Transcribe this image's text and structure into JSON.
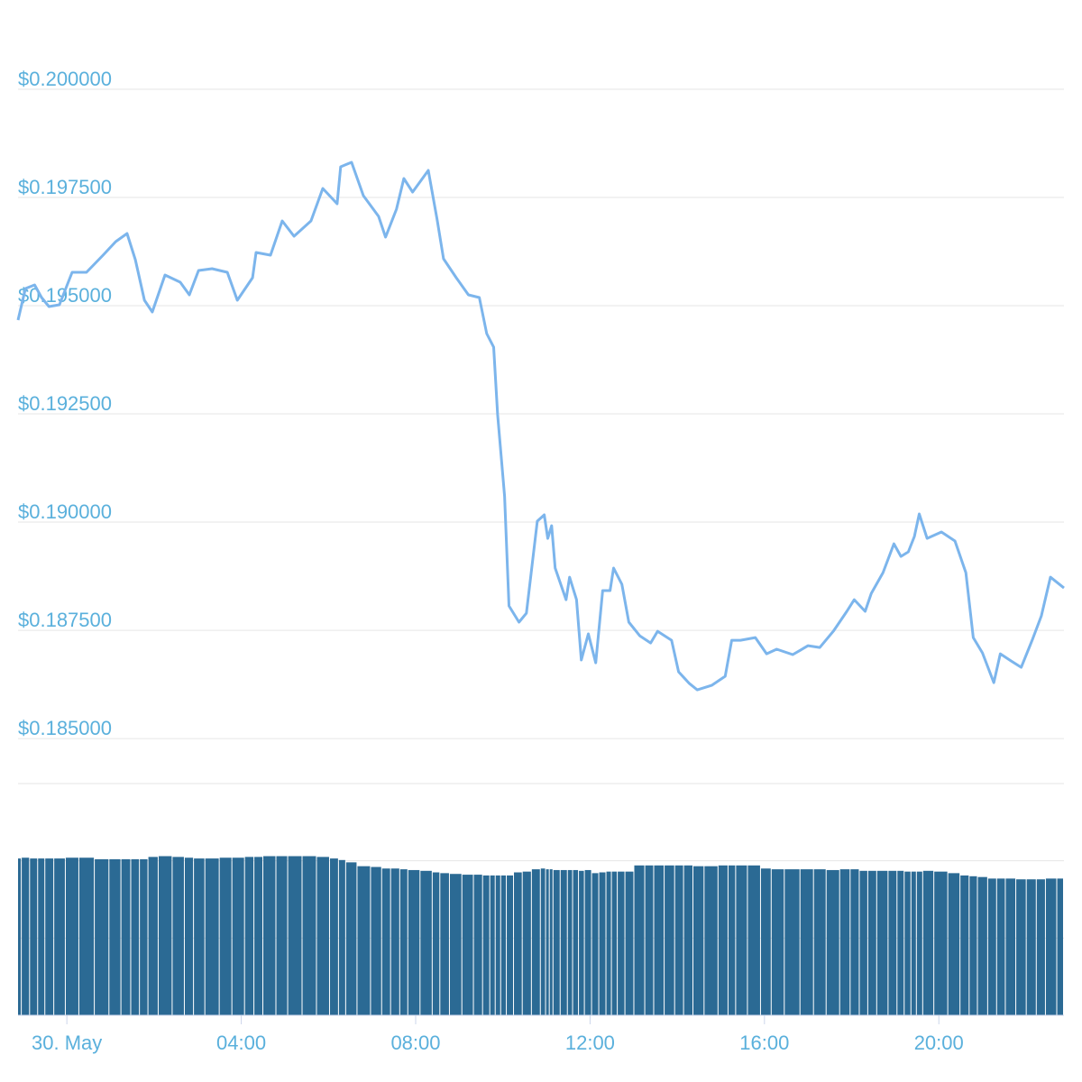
{
  "chart_data": {
    "type": "line",
    "x": [
      -1.12,
      -0.95,
      -0.74,
      -0.58,
      -0.41,
      -0.17,
      0.12,
      0.45,
      0.83,
      1.12,
      1.38,
      1.57,
      1.78,
      1.96,
      2.25,
      2.6,
      2.81,
      3.02,
      3.33,
      3.68,
      3.91,
      4.26,
      4.34,
      4.67,
      4.94,
      5.21,
      5.6,
      5.87,
      6.2,
      6.28,
      6.53,
      6.8,
      7.15,
      7.31,
      7.56,
      7.73,
      7.93,
      8.29,
      8.49,
      8.64,
      8.93,
      9.21,
      9.46,
      9.63,
      9.79,
      9.88,
      10.04,
      10.14,
      10.37,
      10.54,
      10.79,
      10.95,
      11.03,
      11.12,
      11.2,
      11.45,
      11.53,
      11.69,
      11.8,
      11.96,
      12.13,
      12.29,
      12.46,
      12.54,
      12.73,
      12.89,
      13.14,
      13.39,
      13.55,
      13.87,
      14.03,
      14.28,
      14.46,
      14.79,
      15.1,
      15.25,
      15.45,
      15.79,
      16.05,
      16.28,
      16.65,
      17.0,
      17.27,
      17.58,
      17.89,
      18.06,
      18.31,
      18.45,
      18.72,
      18.97,
      19.13,
      19.3,
      19.44,
      19.55,
      19.73,
      20.06,
      20.37,
      20.62,
      20.79,
      21.0,
      21.26,
      21.41,
      21.66,
      21.89,
      22.14,
      22.35,
      22.56,
      22.87
    ],
    "series": [
      {
        "color": "#7cb5ec",
        "values": [
          0.194667,
          0.195396,
          0.195479,
          0.195188,
          0.194979,
          0.195021,
          0.195771,
          0.195771,
          0.196167,
          0.196479,
          0.196667,
          0.196063,
          0.195125,
          0.194854,
          0.195708,
          0.195542,
          0.19525,
          0.195813,
          0.195854,
          0.195771,
          0.195125,
          0.195646,
          0.196229,
          0.196167,
          0.196958,
          0.196604,
          0.196958,
          0.197708,
          0.197354,
          0.198208,
          0.198313,
          0.197542,
          0.197063,
          0.196583,
          0.197229,
          0.197938,
          0.197625,
          0.198125,
          0.197,
          0.196083,
          0.195646,
          0.19525,
          0.195188,
          0.194354,
          0.194042,
          0.192479,
          0.190604,
          0.188063,
          0.187688,
          0.187896,
          0.190021,
          0.190167,
          0.189625,
          0.189917,
          0.188938,
          0.188208,
          0.188729,
          0.188208,
          0.186813,
          0.187417,
          0.18675,
          0.188417,
          0.188417,
          0.188938,
          0.188563,
          0.187688,
          0.187375,
          0.187208,
          0.187479,
          0.187271,
          0.186542,
          0.186271,
          0.186125,
          0.186229,
          0.186438,
          0.187271,
          0.187271,
          0.187333,
          0.186958,
          0.187063,
          0.186938,
          0.187146,
          0.187104,
          0.187479,
          0.187938,
          0.188208,
          0.187938,
          0.188354,
          0.188833,
          0.1895,
          0.189208,
          0.189313,
          0.189667,
          0.190188,
          0.189625,
          0.189771,
          0.189563,
          0.188833,
          0.187333,
          0.186979,
          0.186292,
          0.186958,
          0.186792,
          0.186646,
          0.187271,
          0.187833,
          0.188729,
          0.188479
        ]
      },
      {
        "color": "#2b6a94",
        "axis": "y2",
        "values": [
          2.03,
          2.04,
          2.03,
          2.03,
          2.03,
          2.03,
          2.04,
          2.04,
          2.02,
          2.02,
          2.02,
          2.02,
          2.02,
          2.05,
          2.06,
          2.05,
          2.04,
          2.03,
          2.03,
          2.04,
          2.04,
          2.05,
          2.05,
          2.06,
          2.06,
          2.06,
          2.06,
          2.05,
          2.03,
          2.01,
          1.98,
          1.93,
          1.92,
          1.9,
          1.9,
          1.89,
          1.88,
          1.87,
          1.85,
          1.84,
          1.83,
          1.82,
          1.82,
          1.81,
          1.81,
          1.81,
          1.81,
          1.81,
          1.85,
          1.86,
          1.89,
          1.9,
          1.89,
          1.89,
          1.88,
          1.88,
          1.88,
          1.88,
          1.87,
          1.88,
          1.84,
          1.85,
          1.86,
          1.86,
          1.86,
          1.86,
          1.94,
          1.94,
          1.94,
          1.94,
          1.94,
          1.94,
          1.93,
          1.93,
          1.94,
          1.94,
          1.94,
          1.94,
          1.9,
          1.89,
          1.89,
          1.89,
          1.89,
          1.88,
          1.89,
          1.89,
          1.87,
          1.87,
          1.87,
          1.87,
          1.87,
          1.86,
          1.86,
          1.86,
          1.87,
          1.86,
          1.84,
          1.81,
          1.8,
          1.79,
          1.77,
          1.77,
          1.77,
          1.76,
          1.76,
          1.76,
          1.77,
          1.77
        ]
      }
    ],
    "xlim": [
      -1.12,
      22.87
    ],
    "xticks": [
      {
        "value": 0,
        "label": "30. May"
      },
      {
        "value": 4,
        "label": "04:00"
      },
      {
        "value": 8,
        "label": "08:00"
      },
      {
        "value": 12,
        "label": "12:00"
      },
      {
        "value": 16,
        "label": "16:00"
      },
      {
        "value": 20,
        "label": "20:00"
      }
    ],
    "ylim": [
      0.18396,
      0.2015
    ],
    "yticks": [
      {
        "value": 0.185,
        "label": "$0.185000"
      },
      {
        "value": 0.1875,
        "label": "$0.187500"
      },
      {
        "value": 0.19,
        "label": "$0.190000"
      },
      {
        "value": 0.1925,
        "label": "$0.192500"
      },
      {
        "value": 0.195,
        "label": "$0.195000"
      },
      {
        "value": 0.1975,
        "label": "$0.197500"
      },
      {
        "value": 0.2,
        "label": "$0.200000"
      }
    ],
    "y2lim": [
      0,
      3
    ],
    "y2ticks": [
      0,
      1,
      2,
      3
    ],
    "grid": true
  }
}
